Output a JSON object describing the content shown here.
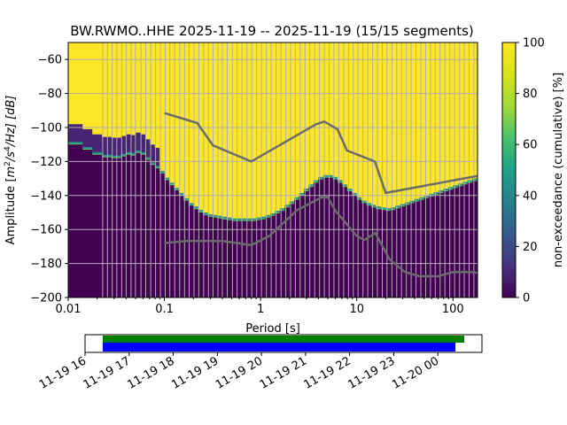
{
  "chart_data": {
    "type": "heatmap",
    "title": "BW.RWMO..HHE   2025-11-19 -- 2025-11-19  (15/15 segments)",
    "xlabel": "Period [s]",
    "ylabel_prefix": "Amplitude [",
    "ylabel_m": "m",
    "ylabel_m_exp": "2",
    "ylabel_s": "/s",
    "ylabel_s_exp": "4",
    "ylabel_suffix": "/Hz] [dB]",
    "xscale": "log",
    "xlim": [
      0.01,
      180
    ],
    "ylim": [
      -200,
      -50
    ],
    "x_ticks": [
      {
        "value": 0.01,
        "label": "0.01"
      },
      {
        "value": 0.1,
        "label": "0.1"
      },
      {
        "value": 1,
        "label": "1"
      },
      {
        "value": 10,
        "label": "10"
      },
      {
        "value": 100,
        "label": "100"
      }
    ],
    "y_ticks": [
      {
        "value": -60,
        "label": "−60"
      },
      {
        "value": -80,
        "label": "−80"
      },
      {
        "value": -100,
        "label": "−100"
      },
      {
        "value": -120,
        "label": "−120"
      },
      {
        "value": -140,
        "label": "−140"
      },
      {
        "value": -160,
        "label": "−160"
      },
      {
        "value": -180,
        "label": "−180"
      },
      {
        "value": -200,
        "label": "−200"
      }
    ],
    "grid_periods": [
      0.0228,
      0.0256,
      0.0287,
      0.032,
      0.036,
      0.04,
      0.045,
      0.05,
      0.057,
      0.064,
      0.072,
      0.081,
      0.091,
      0.102,
      0.114,
      0.128,
      0.144,
      0.162,
      0.181,
      0.203,
      0.228,
      0.256,
      0.287,
      0.32,
      0.36,
      0.4,
      0.45,
      0.51,
      0.57,
      0.64,
      0.72,
      0.81,
      0.91,
      1.02,
      1.15,
      1.29,
      1.45,
      1.63,
      1.83,
      2.05,
      2.3,
      2.58,
      2.9,
      3.25,
      3.65,
      4.1,
      4.6,
      5.16,
      5.79,
      6.5,
      7.3,
      8.2,
      9.2,
      10.3,
      11.6,
      13.0,
      14.6,
      16.4,
      18.4,
      20.6,
      23.2,
      26.0,
      29.2,
      32.8,
      36.8,
      41.3,
      46.3,
      52.0,
      58.4,
      65.5,
      73.5,
      82.5,
      92.6,
      104,
      117,
      131,
      147,
      165
    ],
    "psd_curve": [
      [
        0.0083,
        -110
      ],
      [
        0.01,
        -110
      ],
      [
        0.0141,
        -113
      ],
      [
        0.0178,
        -116
      ],
      [
        0.0224,
        -117.5
      ],
      [
        0.0282,
        -118
      ],
      [
        0.0355,
        -117
      ],
      [
        0.0398,
        -116
      ],
      [
        0.0447,
        -116.5
      ],
      [
        0.05,
        -115
      ],
      [
        0.0562,
        -116
      ],
      [
        0.0631,
        -119
      ],
      [
        0.0708,
        -122
      ],
      [
        0.0794,
        -124
      ],
      [
        0.0891,
        -127
      ],
      [
        0.1,
        -131
      ],
      [
        0.112,
        -134
      ],
      [
        0.126,
        -137
      ],
      [
        0.141,
        -140
      ],
      [
        0.158,
        -143
      ],
      [
        0.178,
        -146
      ],
      [
        0.2,
        -148
      ],
      [
        0.224,
        -150
      ],
      [
        0.251,
        -151.5
      ],
      [
        0.282,
        -152.5
      ],
      [
        0.316,
        -153
      ],
      [
        0.355,
        -153.5
      ],
      [
        0.398,
        -154
      ],
      [
        0.447,
        -154.5
      ],
      [
        0.501,
        -155
      ],
      [
        0.562,
        -155
      ],
      [
        0.631,
        -155
      ],
      [
        0.708,
        -155
      ],
      [
        0.794,
        -155
      ],
      [
        0.891,
        -154.5
      ],
      [
        1.0,
        -154
      ],
      [
        1.12,
        -153
      ],
      [
        1.26,
        -152
      ],
      [
        1.41,
        -150.5
      ],
      [
        1.58,
        -149
      ],
      [
        1.78,
        -147
      ],
      [
        2.0,
        -145
      ],
      [
        2.24,
        -142.5
      ],
      [
        2.51,
        -140
      ],
      [
        2.82,
        -137.5
      ],
      [
        3.16,
        -135
      ],
      [
        3.55,
        -132.5
      ],
      [
        3.98,
        -130.5
      ],
      [
        4.47,
        -129.5
      ],
      [
        5.01,
        -129.5
      ],
      [
        5.62,
        -130.5
      ],
      [
        6.31,
        -132.5
      ],
      [
        7.08,
        -135
      ],
      [
        7.94,
        -137.5
      ],
      [
        8.91,
        -140
      ],
      [
        10.0,
        -142.5
      ],
      [
        11.2,
        -144.5
      ],
      [
        12.6,
        -146
      ],
      [
        14.1,
        -147
      ],
      [
        15.8,
        -148
      ],
      [
        17.8,
        -148.5
      ],
      [
        20.0,
        -149
      ],
      [
        22.4,
        -148.5
      ],
      [
        25.1,
        -147.5
      ],
      [
        28.2,
        -146.5
      ],
      [
        31.6,
        -145.5
      ],
      [
        35.5,
        -144.5
      ],
      [
        39.8,
        -143.5
      ],
      [
        44.7,
        -142.5
      ],
      [
        50.1,
        -141.5
      ],
      [
        56.2,
        -140.5
      ],
      [
        63.1,
        -139.5
      ],
      [
        70.8,
        -138.5
      ],
      [
        79.4,
        -137.5
      ],
      [
        89.1,
        -136.5
      ],
      [
        100,
        -135.5
      ],
      [
        112,
        -134.5
      ],
      [
        126,
        -133.5
      ],
      [
        141,
        -132.5
      ],
      [
        158,
        -131.5
      ],
      [
        178,
        -130.5
      ],
      [
        181,
        -130.5
      ]
    ],
    "nhnm": [
      [
        0.1,
        -91.5
      ],
      [
        0.22,
        -97.4
      ],
      [
        0.32,
        -110.5
      ],
      [
        0.8,
        -120
      ],
      [
        3.8,
        -98
      ],
      [
        4.6,
        -96.5
      ],
      [
        6.3,
        -101
      ],
      [
        7.9,
        -113.5
      ],
      [
        15.4,
        -120
      ],
      [
        20,
        -138.5
      ],
      [
        180,
        -128.5
      ]
    ],
    "nlnm": [
      [
        0.1,
        -168
      ],
      [
        0.17,
        -166.7
      ],
      [
        0.4,
        -166.7
      ],
      [
        0.8,
        -169.2
      ],
      [
        1.24,
        -163.7
      ],
      [
        2.4,
        -148.6
      ],
      [
        4.3,
        -141.1
      ],
      [
        5.0,
        -141.1
      ],
      [
        6.0,
        -149
      ],
      [
        10,
        -163.8
      ],
      [
        12,
        -166.2
      ],
      [
        15.6,
        -162.1
      ],
      [
        21.9,
        -177.5
      ],
      [
        31.6,
        -185
      ],
      [
        45,
        -187.5
      ],
      [
        70,
        -187.5
      ],
      [
        101,
        -185
      ],
      [
        154,
        -185
      ],
      [
        180,
        -185.5
      ]
    ],
    "colorbar": {
      "label": "non-exceedance (cumulative) [%]",
      "ticks": [
        {
          "value": 0,
          "label": "0"
        },
        {
          "value": 20,
          "label": "20"
        },
        {
          "value": 40,
          "label": "40"
        },
        {
          "value": 60,
          "label": "60"
        },
        {
          "value": 80,
          "label": "80"
        },
        {
          "value": 100,
          "label": "100"
        }
      ]
    },
    "timeline": {
      "start_hour": 16.0,
      "end_hour": 25.0,
      "data_bar": {
        "start_hour": 16.4,
        "end_hour": 24.6,
        "color": "#008000"
      },
      "psd_bar": {
        "start_hour": 16.4,
        "end_hour": 24.4,
        "color": "#0000ff"
      },
      "ticks": [
        {
          "hour": 16,
          "label": "11-19 16"
        },
        {
          "hour": 17,
          "label": "11-19 17"
        },
        {
          "hour": 18,
          "label": "11-19 18"
        },
        {
          "hour": 19,
          "label": "11-19 19"
        },
        {
          "hour": 20,
          "label": "11-19 20"
        },
        {
          "hour": 21,
          "label": "11-19 21"
        },
        {
          "hour": 22,
          "label": "11-19 22"
        },
        {
          "hour": 23,
          "label": "11-19 23"
        },
        {
          "hour": 24,
          "label": "11-20 00"
        }
      ]
    }
  }
}
